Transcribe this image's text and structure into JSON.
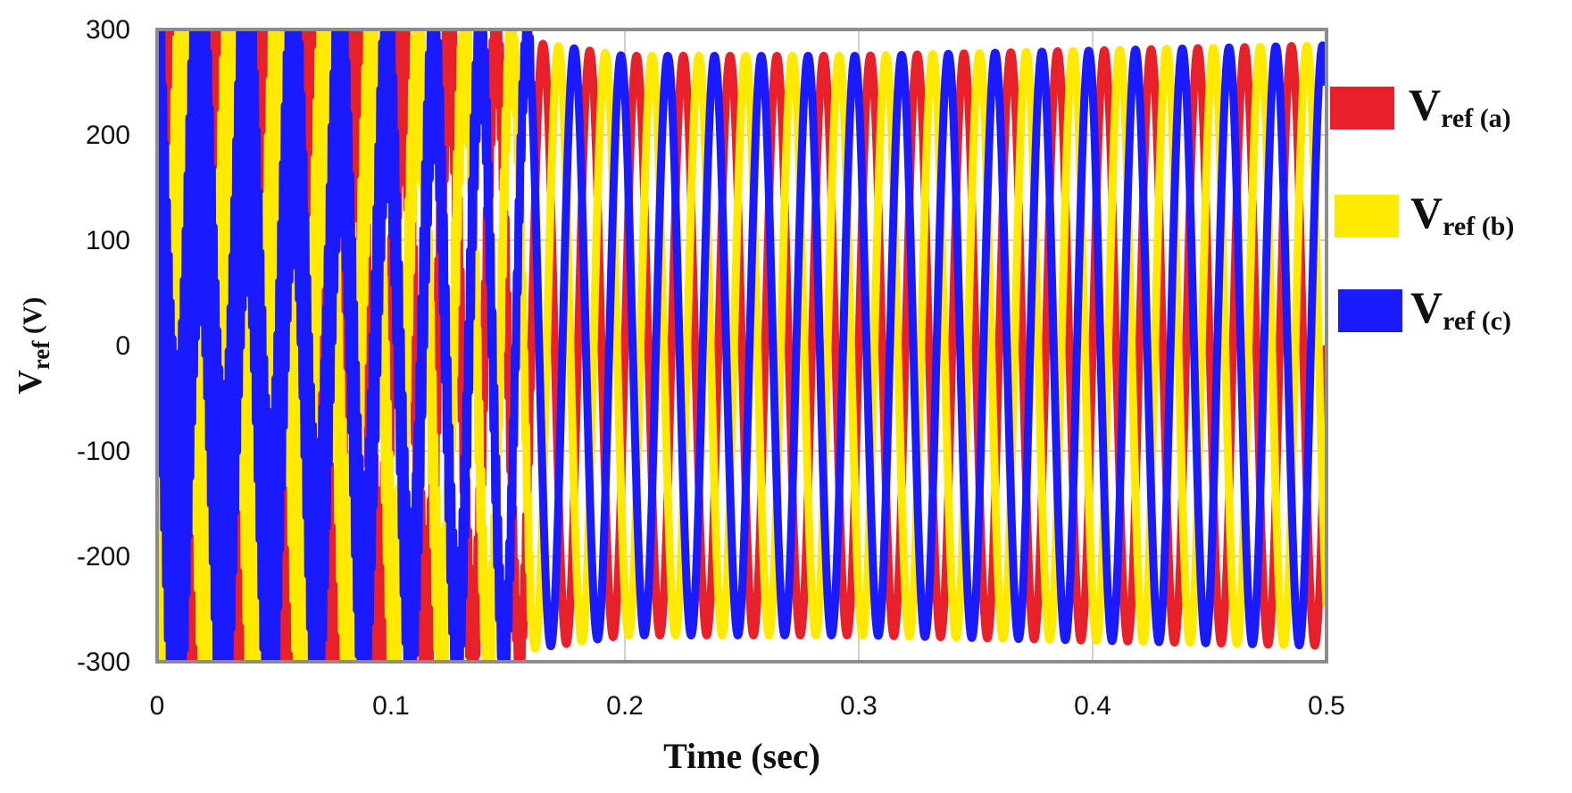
{
  "chart_data": {
    "type": "line",
    "xlabel": "Time (sec)",
    "ylabel": {
      "main": "V",
      "sub": "ref",
      "suffix": " (V)"
    },
    "xlim": [
      0,
      0.5
    ],
    "ylim": [
      -300,
      300
    ],
    "xticks": [
      0,
      0.1,
      0.2,
      0.3,
      0.4,
      0.5
    ],
    "xtick_labels": [
      "0",
      "0.1",
      "0.2",
      "0.3",
      "0.4",
      "0.5"
    ],
    "yticks": [
      300,
      200,
      100,
      0,
      -100,
      -200,
      -300
    ],
    "ytick_labels": [
      "300",
      "200",
      "100",
      "0",
      "-100",
      "-200",
      "-300"
    ],
    "grid": true,
    "legend_position": "right",
    "frequency_hz": 50,
    "envelope": {
      "t": [
        0,
        0.02,
        0.04,
        0.06,
        0.08,
        0.1,
        0.12,
        0.14,
        0.16,
        0.2,
        0.3,
        0.4,
        0.5
      ],
      "amplitude": [
        215,
        222,
        228,
        232,
        240,
        252,
        268,
        285,
        288,
        275,
        275,
        280,
        285
      ]
    },
    "ripple": {
      "end_time": 0.16,
      "start_amplitude": 200,
      "end_amplitude": 20
    },
    "series": [
      {
        "name": "a",
        "label_main": "V",
        "label_sub": "ref (a)",
        "phase_deg": 0,
        "color": "#e8202a"
      },
      {
        "name": "b",
        "label_main": "V",
        "label_sub": "ref (b)",
        "phase_deg": -120,
        "color": "#ffea00"
      },
      {
        "name": "c",
        "label_main": "V",
        "label_sub": "ref (c)",
        "phase_deg": 120,
        "color": "#1a1aff"
      }
    ]
  }
}
